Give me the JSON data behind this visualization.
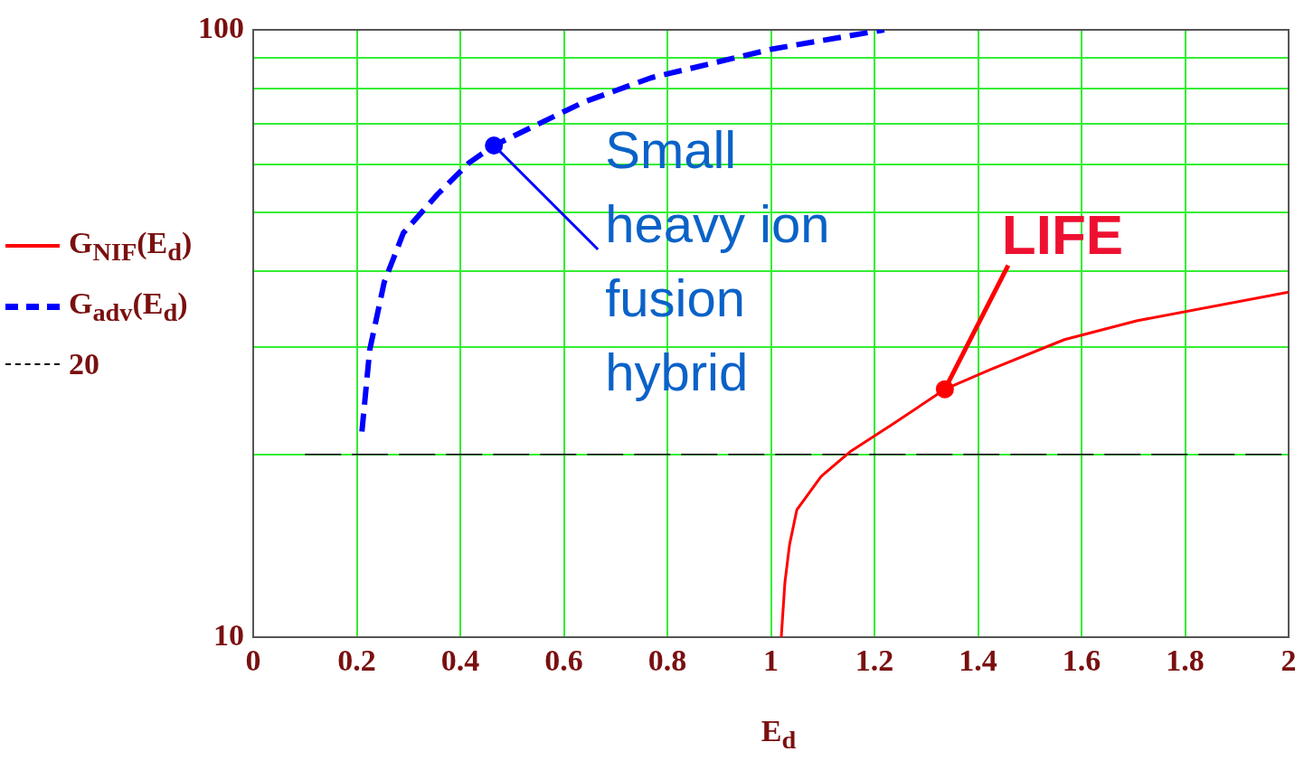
{
  "chart_data": {
    "type": "line",
    "xlabel": "E$_{d}$",
    "xlim": [
      0,
      2
    ],
    "xticks": [
      0,
      0.2,
      0.4,
      0.6,
      0.8,
      1,
      1.2,
      1.4,
      1.6,
      1.8,
      2
    ],
    "ylim": [
      10,
      100
    ],
    "yticks": [
      10,
      {
        "value": 20,
        "label": null
      },
      {
        "value": 30,
        "label": null
      },
      {
        "value": 40,
        "label": null
      },
      {
        "value": 50,
        "label": null
      },
      {
        "value": 60,
        "label": null
      },
      {
        "value": 70,
        "label": null
      },
      {
        "value": 80,
        "label": null
      },
      {
        "value": 90,
        "label": null
      },
      100
    ],
    "log": "y",
    "grid": true,
    "legend": "left",
    "marker": "none",
    "series": [
      {
        "name": "G$_{NIF}$(E$_{d}$)",
        "color": "#ff0000",
        "line_style": "solid",
        "x": [
          1.02,
          1.027,
          1.036,
          1.05,
          1.097,
          1.153,
          1.238,
          1.336,
          1.425,
          1.567,
          1.708,
          2.0
        ],
        "values": [
          10,
          12.3,
          14.2,
          16.2,
          18.4,
          20.2,
          22.5,
          25.6,
          27.6,
          30.9,
          33.2,
          37.0
        ]
      },
      {
        "name": "G$_{adv}$(E$_{d}$)",
        "color": "#0000ff",
        "line_style": "dashed",
        "x": [
          0.21,
          0.225,
          0.253,
          0.29,
          0.356,
          0.417,
          0.465,
          0.638,
          0.769,
          1.003,
          1.219
        ],
        "values": [
          21.8,
          29.7,
          38.4,
          46.3,
          53.6,
          60.4,
          64.5,
          76.0,
          83.4,
          93.0,
          100
        ]
      },
      {
        "name": "20",
        "color": "#000000",
        "line_style": "dashed",
        "x": [
          0.1,
          2.0
        ],
        "values": [
          20,
          20
        ]
      }
    ],
    "annotations": [
      {
        "text": "Small heavy ion fusion hybrid",
        "x": 0.465,
        "y": 64.5
      },
      {
        "text": "LIFE",
        "x": 1.336,
        "y": 25.6
      }
    ]
  }
}
